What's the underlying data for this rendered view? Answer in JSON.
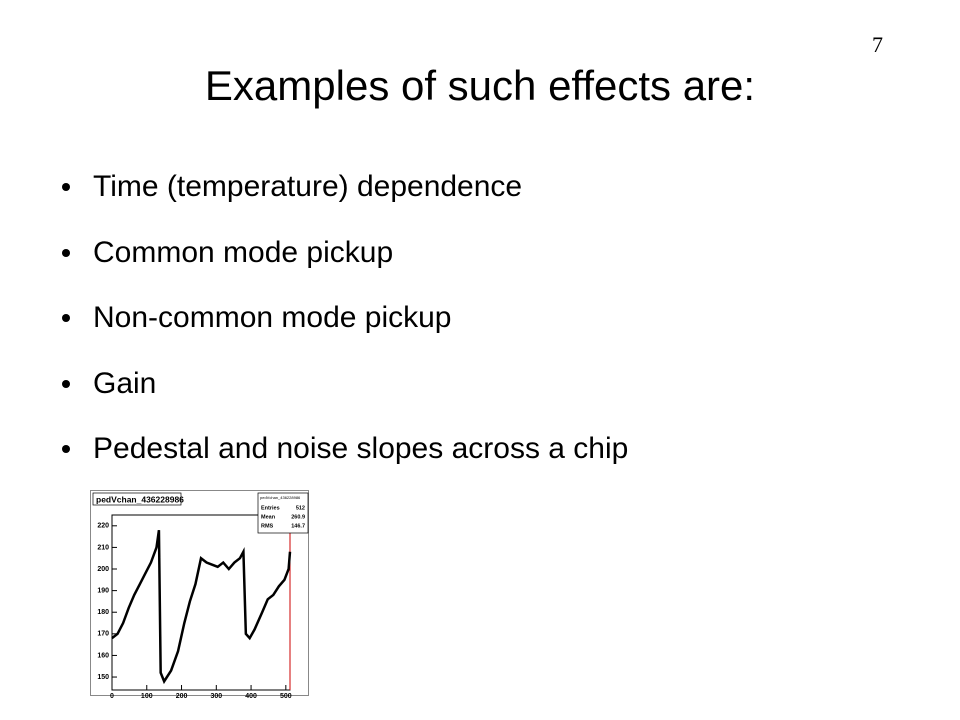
{
  "slide": {
    "title": "Examples of such effects are:",
    "page_number": "7",
    "bullets": [
      "Time (temperature) dependence",
      "Common mode pickup",
      "Non-common mode pickup",
      "Gain",
      "Pedestal and noise slopes across a chip"
    ]
  },
  "chart_data": {
    "type": "line",
    "title": "pedVchan_436228986",
    "color": "#000000",
    "x": [
      0,
      16,
      32,
      48,
      64,
      80,
      96,
      112,
      128,
      135,
      140,
      150,
      170,
      190,
      208,
      224,
      240,
      256,
      272,
      288,
      304,
      320,
      336,
      352,
      368,
      378,
      385,
      396,
      410,
      432,
      448,
      464,
      480,
      496,
      508,
      512
    ],
    "values": [
      168,
      170,
      175,
      182,
      188,
      193,
      198,
      203,
      210,
      218,
      152,
      148,
      153,
      162,
      175,
      185,
      193,
      205,
      203,
      202,
      201,
      203,
      200,
      203,
      205,
      208,
      170,
      168,
      172,
      180,
      186,
      188,
      192,
      195,
      200,
      208
    ],
    "xlim": [
      0,
      512
    ],
    "ylim": [
      144,
      225
    ],
    "xticks": [
      0,
      100,
      200,
      300,
      400,
      500
    ],
    "yticks": [
      150,
      160,
      170,
      180,
      190,
      200,
      210,
      220
    ],
    "stats": {
      "title": "pedVchan_436228986",
      "labels": [
        "Entries",
        "Mean",
        "RMS"
      ],
      "values": [
        512,
        260.9,
        146.7
      ]
    }
  }
}
